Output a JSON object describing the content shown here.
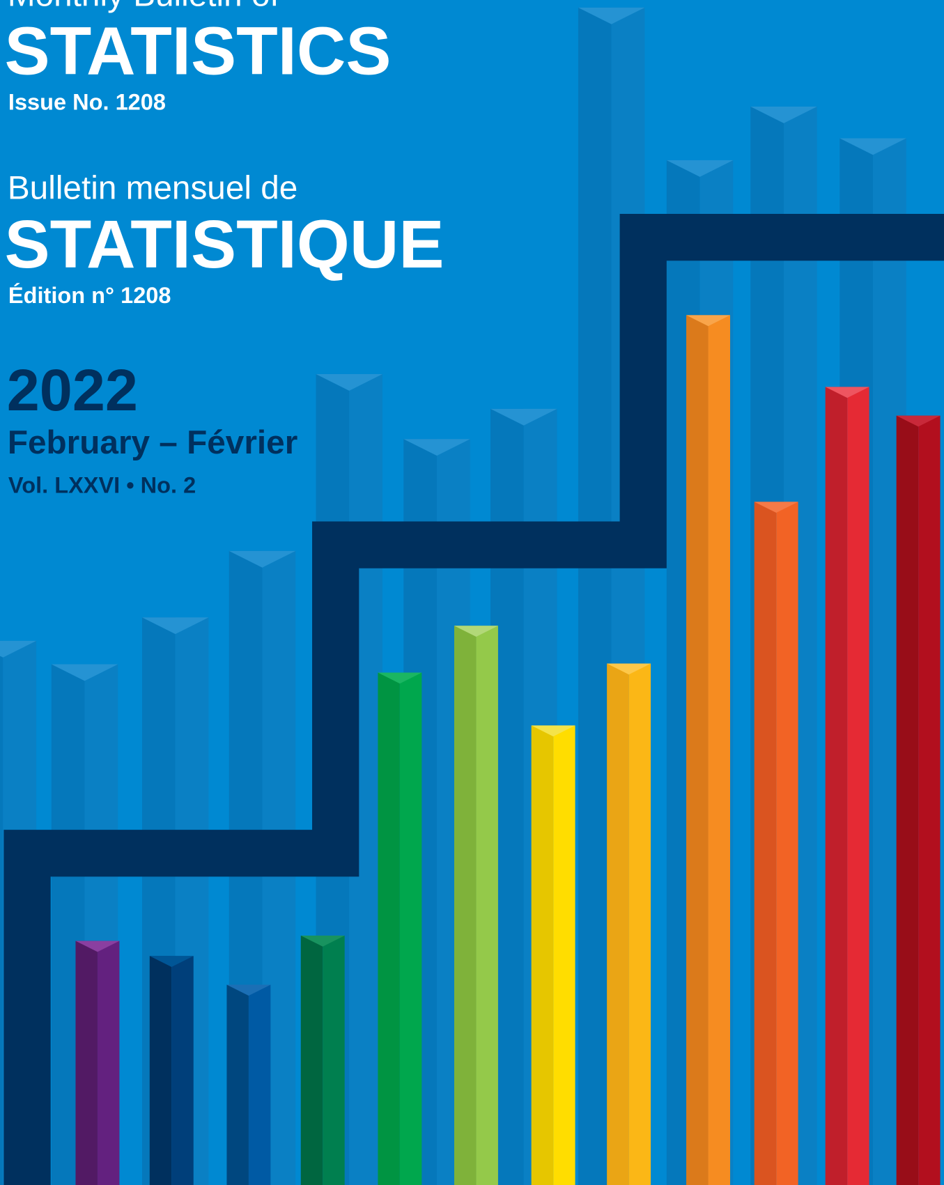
{
  "header": {
    "title_en_prefix": "Monthly Bulletin of",
    "title_en": "STATISTICS",
    "issue_en": "Issue No. 1208",
    "title_fr_prefix": "Bulletin mensuel de",
    "title_fr": "STATISTIQUE",
    "issue_fr": "Édition n° 1208"
  },
  "edition": {
    "year": "2022",
    "month": "February – Février",
    "volume": "Vol. LXXVI • No. 2"
  }
}
